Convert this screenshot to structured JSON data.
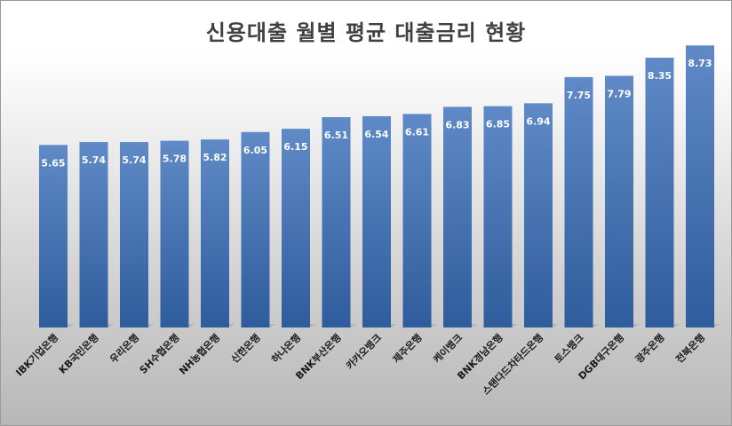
{
  "chart_data": {
    "type": "bar",
    "title": "신용대출 월별 평균 대출금리 현황",
    "categories": [
      "IBK기업은행",
      "KB국민은행",
      "우리은행",
      "SH수협은행",
      "NH농협은행",
      "신한은행",
      "하나은행",
      "BNK부산은행",
      "카카오뱅크",
      "제주은행",
      "케이뱅크",
      "BNK경남은행",
      "스탠다드차타드은행",
      "토스뱅크",
      "DGB대구은행",
      "광주은행",
      "전북은행"
    ],
    "values": [
      5.65,
      5.74,
      5.74,
      5.78,
      5.82,
      6.05,
      6.15,
      6.51,
      6.54,
      6.61,
      6.83,
      6.85,
      6.94,
      7.75,
      7.79,
      8.35,
      8.73
    ],
    "value_labels": [
      "5.65",
      "5.74",
      "5.74",
      "5.78",
      "5.82",
      "6.05",
      "6.15",
      "6.51",
      "6.54",
      "6.61",
      "6.83",
      "6.85",
      "6.94",
      "7.75",
      "7.79",
      "8.35",
      "8.73"
    ],
    "ylim": [
      0,
      9.56
    ],
    "grid": false,
    "legend": "none",
    "bar_color_top": "#5f8ac7",
    "bar_color_bottom": "#2f5c9c"
  }
}
